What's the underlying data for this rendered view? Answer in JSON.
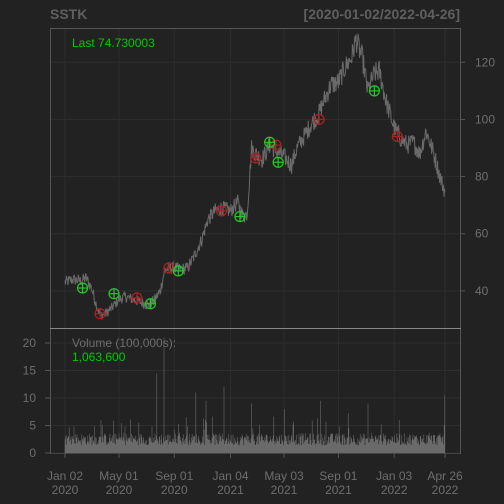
{
  "header": {
    "symbol": "SSTK",
    "date_range": "[2020-01-02/2022-04-26]"
  },
  "chart_data": [
    {
      "type": "line",
      "name": "price",
      "annotation": "Last 74.730003",
      "last_value": 74.730003,
      "ylim": [
        27,
        132
      ],
      "y_ticks": [
        40,
        60,
        80,
        100,
        120
      ],
      "grid": true,
      "x_tick_labels": [
        {
          "date": "2020-01-02",
          "line1": "Jan 02",
          "line2": "2020"
        },
        {
          "date": "2020-05-01",
          "line1": "May 01",
          "line2": "2020"
        },
        {
          "date": "2020-09-01",
          "line1": "Sep 01",
          "line2": "2020"
        },
        {
          "date": "2021-01-04",
          "line1": "Jan 04",
          "line2": "2021"
        },
        {
          "date": "2021-05-03",
          "line1": "May 03",
          "line2": "2021"
        },
        {
          "date": "2021-09-01",
          "line1": "Sep 01",
          "line2": "2021"
        },
        {
          "date": "2022-01-03",
          "line1": "Jan 03",
          "line2": "2022"
        },
        {
          "date": "2022-04-26",
          "line1": "Apr 26",
          "line2": "2022"
        }
      ],
      "series": [
        {
          "values": [
            [
              "2020-01-02",
              43
            ],
            [
              "2020-01-20",
              44
            ],
            [
              "2020-02-05",
              43.5
            ],
            [
              "2020-02-18",
              44.5
            ],
            [
              "2020-03-01",
              41
            ],
            [
              "2020-03-12",
              35
            ],
            [
              "2020-03-20",
              31.5
            ],
            [
              "2020-04-01",
              32
            ],
            [
              "2020-04-15",
              34
            ],
            [
              "2020-05-01",
              37
            ],
            [
              "2020-05-15",
              38
            ],
            [
              "2020-06-01",
              37
            ],
            [
              "2020-06-20",
              36
            ],
            [
              "2020-07-05",
              35
            ],
            [
              "2020-07-20",
              37
            ],
            [
              "2020-08-01",
              40
            ],
            [
              "2020-08-10",
              47
            ],
            [
              "2020-08-20",
              48
            ],
            [
              "2020-09-01",
              48
            ],
            [
              "2020-09-15",
              47.5
            ],
            [
              "2020-10-01",
              48
            ],
            [
              "2020-10-15",
              52
            ],
            [
              "2020-11-01",
              58
            ],
            [
              "2020-11-15",
              65
            ],
            [
              "2020-12-01",
              68
            ],
            [
              "2020-12-15",
              69
            ],
            [
              "2021-01-04",
              68
            ],
            [
              "2021-01-20",
              71
            ],
            [
              "2021-02-01",
              66
            ],
            [
              "2021-02-10",
              67
            ],
            [
              "2021-02-20",
              90
            ],
            [
              "2021-03-01",
              88
            ],
            [
              "2021-03-15",
              86
            ],
            [
              "2021-04-01",
              91
            ],
            [
              "2021-04-15",
              89
            ],
            [
              "2021-05-03",
              87
            ],
            [
              "2021-05-20",
              84
            ],
            [
              "2021-06-01",
              90
            ],
            [
              "2021-06-20",
              95
            ],
            [
              "2021-07-05",
              99
            ],
            [
              "2021-07-20",
              102
            ],
            [
              "2021-08-01",
              107
            ],
            [
              "2021-08-15",
              112
            ],
            [
              "2021-09-01",
              113
            ],
            [
              "2021-09-15",
              118
            ],
            [
              "2021-10-01",
              122
            ],
            [
              "2021-10-10",
              128
            ],
            [
              "2021-10-25",
              121
            ],
            [
              "2021-11-05",
              110
            ],
            [
              "2021-11-20",
              116
            ],
            [
              "2021-12-01",
              117
            ],
            [
              "2021-12-15",
              107
            ],
            [
              "2022-01-03",
              97
            ],
            [
              "2022-01-20",
              93
            ],
            [
              "2022-02-01",
              91
            ],
            [
              "2022-02-15",
              92
            ],
            [
              "2022-03-01",
              88
            ],
            [
              "2022-03-15",
              96
            ],
            [
              "2022-04-01",
              88
            ],
            [
              "2022-04-15",
              80
            ],
            [
              "2022-04-26",
              74.7
            ]
          ]
        }
      ],
      "buy_signals": [
        [
          "2020-02-10",
          41
        ],
        [
          "2020-04-20",
          39
        ],
        [
          "2020-07-10",
          35.5
        ],
        [
          "2020-09-10",
          47
        ],
        [
          "2021-01-25",
          66
        ],
        [
          "2021-04-01",
          92
        ],
        [
          "2021-04-20",
          85
        ],
        [
          "2021-11-20",
          110
        ]
      ],
      "sell_signals": [
        [
          "2020-03-20",
          32
        ],
        [
          "2020-06-10",
          37.5
        ],
        [
          "2020-08-20",
          48
        ],
        [
          "2020-12-15",
          68
        ],
        [
          "2021-03-01",
          86.5
        ],
        [
          "2021-04-15",
          91
        ],
        [
          "2021-07-20",
          100
        ],
        [
          "2022-01-10",
          94
        ]
      ]
    },
    {
      "type": "bar",
      "name": "volume",
      "label": "Volume (100,000s):",
      "last_value_label": "1,063,600",
      "ylim": [
        0,
        22
      ],
      "y_ticks": [
        0,
        5,
        10,
        15,
        20
      ],
      "grid": true,
      "spikes": [
        [
          "2020-07-25",
          14.5
        ],
        [
          "2020-08-10",
          21
        ],
        [
          "2020-10-20",
          11
        ],
        [
          "2020-11-10",
          9.5
        ],
        [
          "2020-12-20",
          12
        ],
        [
          "2021-02-20",
          9
        ],
        [
          "2021-05-05",
          8
        ],
        [
          "2021-07-25",
          9.5
        ],
        [
          "2021-11-05",
          9
        ],
        [
          "2022-04-26",
          10.6
        ]
      ]
    }
  ],
  "colors": {
    "background": "#222222",
    "price_line": "#6a6a6a",
    "buy_marker": "#22cc22",
    "sell_marker": "#aa2222",
    "volume_bars": "#6a6a6a",
    "accent_text": "#00cc00",
    "axis_text": "#6e6e6e"
  }
}
